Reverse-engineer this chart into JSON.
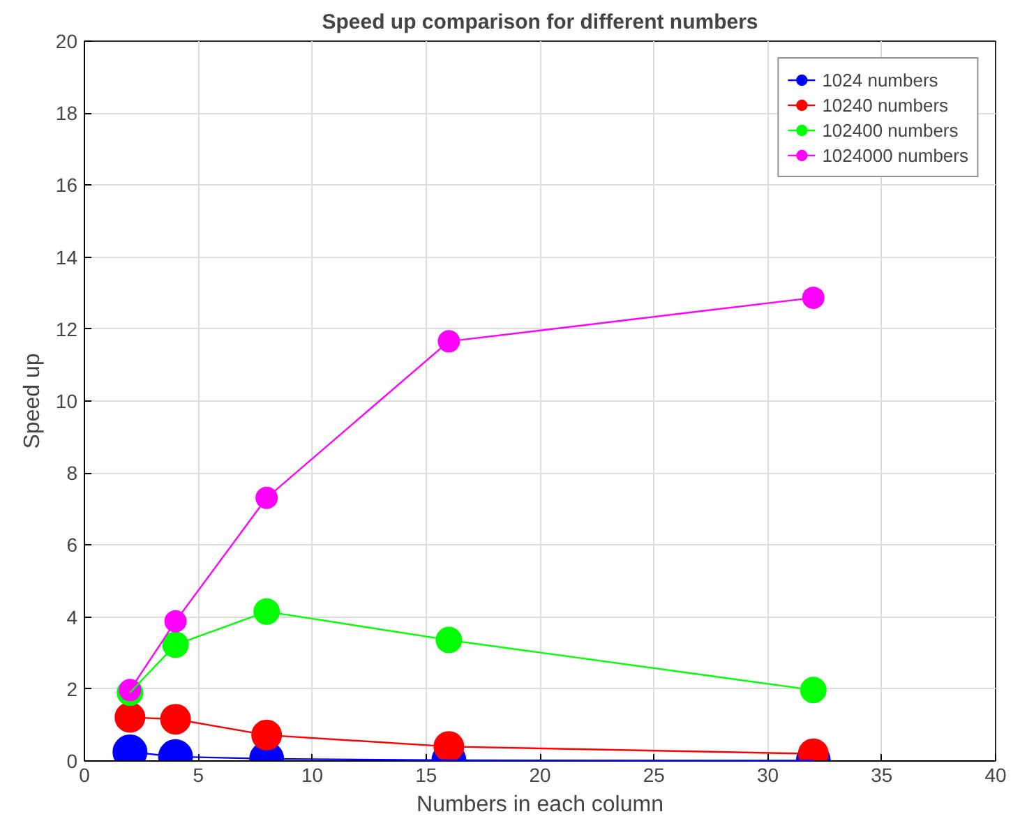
{
  "chart_data": {
    "type": "line",
    "title": "Speed up comparison for different numbers",
    "xlabel": "Numbers in each column",
    "ylabel": "Speed up",
    "x": [
      2,
      4,
      8,
      16,
      32
    ],
    "series": [
      {
        "name": "1024 numbers",
        "color": "#0000ff",
        "values": [
          0.25,
          0.12,
          0.06,
          0.02,
          0.01
        ]
      },
      {
        "name": "10240 numbers",
        "color": "#ff0000",
        "values": [
          1.21,
          1.16,
          0.72,
          0.4,
          0.2
        ]
      },
      {
        "name": "102400 numbers",
        "color": "#00ff00",
        "values": [
          1.9,
          3.23,
          4.15,
          3.36,
          1.97
        ]
      },
      {
        "name": "1024000 numbers",
        "color": "#ff00ff",
        "values": [
          1.97,
          3.88,
          7.31,
          11.66,
          12.87
        ]
      }
    ],
    "xlim": [
      0,
      40
    ],
    "xticks": [
      0,
      5,
      10,
      15,
      20,
      25,
      30,
      35,
      40
    ],
    "ylim": [
      0,
      20
    ],
    "yticks": [
      0,
      2,
      4,
      6,
      8,
      10,
      12,
      14,
      16,
      18,
      20
    ],
    "grid": true,
    "legend": "top right",
    "marker": "circle",
    "line_style": "solid"
  }
}
